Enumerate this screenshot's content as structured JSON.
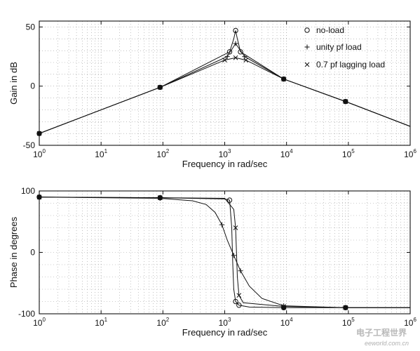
{
  "chart_data": [
    {
      "type": "line",
      "xlabel": "Frequency in rad/sec",
      "ylabel": "Gain in dB",
      "xscale": "log",
      "xlim": [
        1,
        1000000
      ],
      "ylim": [
        -50,
        55
      ],
      "xticks": [
        {
          "base": "10",
          "exp": "0",
          "value": 1
        },
        {
          "base": "10",
          "exp": "1",
          "value": 10
        },
        {
          "base": "10",
          "exp": "2",
          "value": 100
        },
        {
          "base": "10",
          "exp": "3",
          "value": 1000
        },
        {
          "base": "10",
          "exp": "4",
          "value": 10000
        },
        {
          "base": "10",
          "exp": "5",
          "value": 100000
        },
        {
          "base": "10",
          "exp": "6",
          "value": 1000000
        }
      ],
      "yticks": [
        "50",
        "0",
        "-50"
      ],
      "yticks_values": [
        50,
        0,
        -50
      ],
      "grid": true,
      "legend_position": "top-right",
      "legend": [
        {
          "marker": "o",
          "label": "no-load"
        },
        {
          "marker": "+",
          "label": "unity pf load"
        },
        {
          "marker": "x",
          "label": "0.7 pf lagging load"
        }
      ],
      "series": [
        {
          "marker": "o",
          "x": [
            1,
            90,
            1200,
            1400,
            1500,
            1600,
            1800,
            9000,
            90000,
            1000000
          ],
          "y": [
            -40,
            -1,
            29,
            40,
            47,
            40,
            29,
            6,
            -13,
            -34
          ],
          "marker_x": [
            1,
            90,
            1200,
            1500,
            1800,
            9000,
            90000
          ]
        },
        {
          "marker": "+",
          "x": [
            1,
            90,
            1100,
            1500,
            2100,
            9000,
            90000,
            1000000
          ],
          "y": [
            -40,
            -1,
            25,
            36,
            25,
            6,
            -13,
            -34
          ],
          "marker_x": [
            1,
            90,
            1100,
            1500,
            2100,
            9000,
            90000
          ]
        },
        {
          "marker": "x",
          "x": [
            1,
            90,
            1000,
            1500,
            2200,
            9000,
            90000,
            1000000
          ],
          "y": [
            -40,
            -1,
            22,
            24,
            22,
            6,
            -13,
            -34
          ],
          "marker_x": [
            1,
            90,
            1000,
            1500,
            2200,
            9000,
            90000
          ]
        }
      ]
    },
    {
      "type": "line",
      "xlabel": "Frequency in rad/sec",
      "ylabel": "Phase in degrees",
      "xscale": "log",
      "xlim": [
        1,
        1000000
      ],
      "ylim": [
        -100,
        100
      ],
      "xticks": [
        {
          "base": "10",
          "exp": "0",
          "value": 1
        },
        {
          "base": "10",
          "exp": "1",
          "value": 10
        },
        {
          "base": "10",
          "exp": "2",
          "value": 100
        },
        {
          "base": "10",
          "exp": "3",
          "value": 1000
        },
        {
          "base": "10",
          "exp": "4",
          "value": 10000
        },
        {
          "base": "10",
          "exp": "5",
          "value": 100000
        },
        {
          "base": "10",
          "exp": "6",
          "value": 1000000
        }
      ],
      "yticks": [
        "100",
        "0",
        "-100"
      ],
      "yticks_values": [
        100,
        0,
        -100
      ],
      "grid": true,
      "series": [
        {
          "marker": "o",
          "x": [
            1,
            90,
            1000,
            1200,
            1300,
            1350,
            1400,
            1500,
            1700,
            2500,
            9000,
            90000,
            1000000
          ],
          "y": [
            90,
            89,
            87,
            85,
            40,
            -20,
            -60,
            -80,
            -86,
            -89,
            -90,
            -90,
            -90
          ],
          "marker_x": [
            1,
            90,
            1200,
            1500,
            1700,
            9000,
            90000
          ]
        },
        {
          "marker": "+",
          "x": [
            1,
            90,
            300,
            500,
            700,
            900,
            1100,
            1400,
            1800,
            2500,
            4000,
            9000,
            90000,
            1000000
          ],
          "y": [
            90,
            88,
            84,
            78,
            65,
            45,
            20,
            -5,
            -30,
            -55,
            -75,
            -87,
            -90,
            -90
          ],
          "marker_x": [
            1,
            90,
            900,
            1400,
            1800,
            9000,
            90000
          ]
        },
        {
          "marker": "x",
          "x": [
            1,
            90,
            1000,
            1400,
            1500,
            1550,
            1600,
            1700,
            2000,
            9000,
            90000,
            1000000
          ],
          "y": [
            90,
            89,
            88,
            70,
            40,
            0,
            -40,
            -70,
            -82,
            -88,
            -90,
            -90
          ],
          "marker_x": [
            1,
            90,
            1500,
            1700,
            9000,
            90000
          ]
        }
      ]
    }
  ],
  "watermark": {
    "main": "电子工程世界",
    "sub": "eeworld.com.cn"
  }
}
